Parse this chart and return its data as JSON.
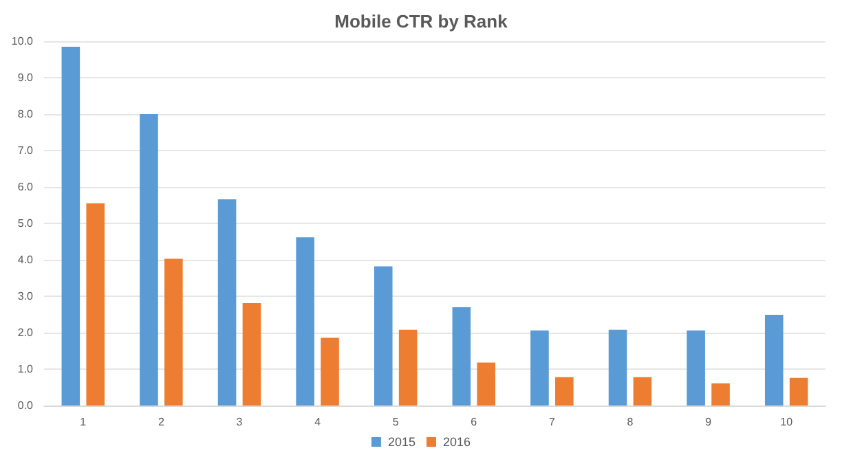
{
  "chart_data": {
    "type": "bar",
    "title": "Mobile CTR by Rank",
    "categories": [
      "1",
      "2",
      "3",
      "4",
      "5",
      "6",
      "7",
      "8",
      "9",
      "10"
    ],
    "series": [
      {
        "name": "2015",
        "color": "#5b9bd5",
        "values": [
          9.85,
          8.0,
          5.66,
          4.62,
          3.82,
          2.7,
          2.06,
          2.08,
          2.06,
          2.49
        ]
      },
      {
        "name": "2016",
        "color": "#ed7d31",
        "values": [
          5.55,
          4.03,
          2.81,
          1.86,
          2.08,
          1.18,
          0.78,
          0.78,
          0.61,
          0.76
        ]
      }
    ],
    "ylim": [
      0,
      10
    ],
    "yticks": [
      {
        "value": 0,
        "label": "0.0"
      },
      {
        "value": 1,
        "label": "1.0"
      },
      {
        "value": 2,
        "label": "2.0"
      },
      {
        "value": 3,
        "label": "3.0"
      },
      {
        "value": 4,
        "label": "4.0"
      },
      {
        "value": 5,
        "label": "5.0"
      },
      {
        "value": 6,
        "label": "6.0"
      },
      {
        "value": 7,
        "label": "7.0"
      },
      {
        "value": 8,
        "label": "8.0"
      },
      {
        "value": 9,
        "label": "9.0"
      },
      {
        "value": 10,
        "label": "10.0"
      }
    ],
    "grid": "y",
    "legend": "bottom"
  }
}
